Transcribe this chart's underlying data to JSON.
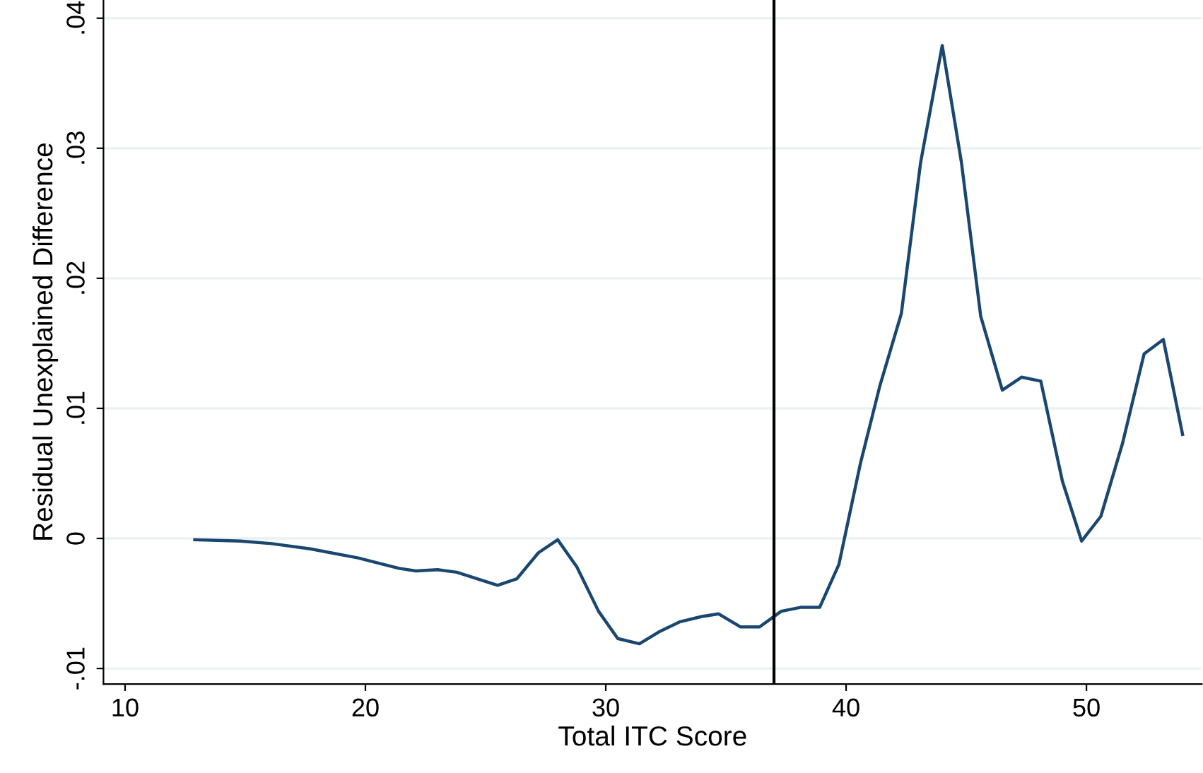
{
  "chart_data": {
    "type": "line",
    "xlabel": "Total ITC Score",
    "ylabel": "Residual Unexplained Difference",
    "x": [
      12.9,
      14.8,
      16.1,
      17.7,
      19.7,
      21.4,
      22.1,
      23.0,
      23.8,
      25.5,
      26.3,
      27.2,
      28.0,
      28.8,
      29.7,
      30.5,
      31.4,
      32.2,
      33.1,
      34.0,
      34.7,
      35.6,
      36.4,
      37.3,
      38.1,
      38.9,
      39.7,
      40.6,
      41.4,
      42.3,
      43.1,
      44.0,
      44.8,
      45.6,
      46.5,
      47.3,
      48.1,
      49.0,
      49.8,
      50.6,
      51.5,
      52.4,
      53.2,
      54.0
    ],
    "series": [
      {
        "color": "#1a476f",
        "values": [
          -0.0001,
          -0.0002,
          -0.0004,
          -0.0008,
          -0.0015,
          -0.0023,
          -0.0025,
          -0.0024,
          -0.0026,
          -0.0036,
          -0.0031,
          -0.0011,
          -0.0001,
          -0.0022,
          -0.0056,
          -0.0077,
          -0.0081,
          -0.0072,
          -0.0064,
          -0.006,
          -0.0058,
          -0.0068,
          -0.0068,
          -0.0056,
          -0.0053,
          -0.0053,
          -0.002,
          0.0058,
          0.0117,
          0.0173,
          0.0289,
          0.0379,
          0.0289,
          0.0171,
          0.0114,
          0.0124,
          0.0121,
          0.0044,
          -0.0002,
          0.0017,
          0.0073,
          0.0142,
          0.0153,
          0.008
        ]
      }
    ],
    "xlim": [
      9.1,
      54.8
    ],
    "ylim": [
      -0.0112,
      0.0414
    ],
    "xticks": [
      10,
      20,
      30,
      40,
      50
    ],
    "yticks": [
      {
        "value": -0.01,
        "label": "-.01"
      },
      0,
      {
        "value": 0.01,
        "label": ".01"
      },
      {
        "value": 0.02,
        "label": ".02"
      },
      {
        "value": 0.03,
        "label": ".03"
      },
      {
        "value": 0.04,
        "label": ".04"
      }
    ],
    "grid": "y",
    "ref_lines": [
      {
        "axis": "x",
        "value": 37,
        "color": "#000000"
      }
    ]
  }
}
